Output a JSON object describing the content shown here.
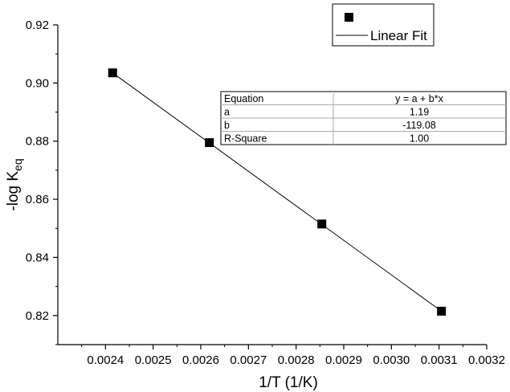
{
  "chart_data": {
    "type": "scatter",
    "xlabel": "1/T (1/K)",
    "ylabel_base": "-log K",
    "ylabel_subscript": "eq",
    "xlim": [
      0.0023,
      0.0032
    ],
    "ylim": [
      0.81,
      0.92
    ],
    "xticks": [
      0.0024,
      0.0025,
      0.0026,
      0.0027,
      0.0028,
      0.0029,
      0.003,
      0.0031,
      0.0032
    ],
    "xtick_labels": [
      "0.0024",
      "0.0025",
      "0.0026",
      "0.0027",
      "0.0028",
      "0.0029",
      "0.0030",
      "0.0031",
      "0.0032"
    ],
    "yticks": [
      0.82,
      0.84,
      0.86,
      0.88,
      0.9,
      0.92
    ],
    "ytick_labels": [
      "0.82",
      "0.84",
      "0.86",
      "0.88",
      "0.90",
      "0.92"
    ],
    "series": [
      {
        "type": "scatter",
        "marker": "square",
        "color": "#000000",
        "x": [
          0.002415,
          0.002618,
          0.002854,
          0.003105
        ],
        "y": [
          0.9035,
          0.8795,
          0.8515,
          0.8215
        ]
      },
      {
        "name": "Linear Fit",
        "type": "line",
        "color": "#000000",
        "x": [
          0.002415,
          0.003105
        ],
        "y": [
          0.9035,
          0.8215
        ]
      }
    ],
    "legend": {
      "placement": "top-right",
      "entries": [
        {
          "marker": "square",
          "label": ""
        },
        {
          "marker": "line",
          "label": "Linear Fit"
        }
      ]
    },
    "fit_table": {
      "rows": [
        [
          "Equation",
          "y = a + b*x"
        ],
        [
          "a",
          "1.19"
        ],
        [
          "b",
          "-119.08"
        ],
        [
          "R-Square",
          "1.00"
        ]
      ]
    }
  }
}
